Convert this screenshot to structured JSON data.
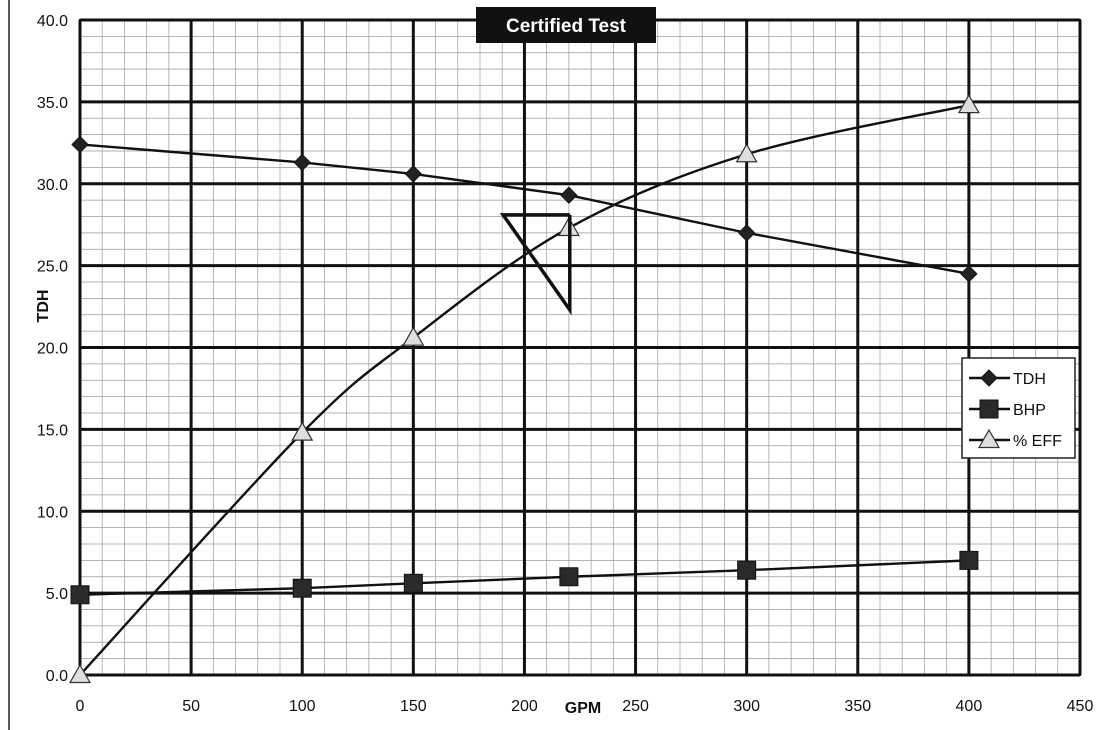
{
  "chart_data": {
    "type": "line",
    "title": "Certified Test",
    "xlabel": "GPM",
    "ylabel": "TDH",
    "xlim": [
      0,
      450
    ],
    "ylim": [
      0,
      40
    ],
    "x_ticks": [
      "0",
      "50",
      "100",
      "150",
      "200",
      "250",
      "300",
      "350",
      "400",
      "450"
    ],
    "y_ticks": [
      "0.0",
      "5.0",
      "10.0",
      "15.0",
      "20.0",
      "25.0",
      "30.0",
      "35.0",
      "40.0"
    ],
    "x": [
      0,
      100,
      150,
      220,
      300,
      400
    ],
    "grid": true,
    "legend_position": "right",
    "series": [
      {
        "name": "TDH",
        "marker": "diamond",
        "color": "#111111",
        "values": [
          32.4,
          31.3,
          30.6,
          29.3,
          27.0,
          24.5
        ]
      },
      {
        "name": "BHP",
        "marker": "square",
        "color": "#111111",
        "values": [
          4.9,
          5.3,
          5.6,
          6.0,
          6.4,
          7.0
        ]
      },
      {
        "name": "% EFF",
        "marker": "triangle",
        "color": "#111111",
        "values": [
          0.0,
          14.8,
          20.6,
          27.3,
          31.8,
          34.8
        ]
      }
    ]
  }
}
